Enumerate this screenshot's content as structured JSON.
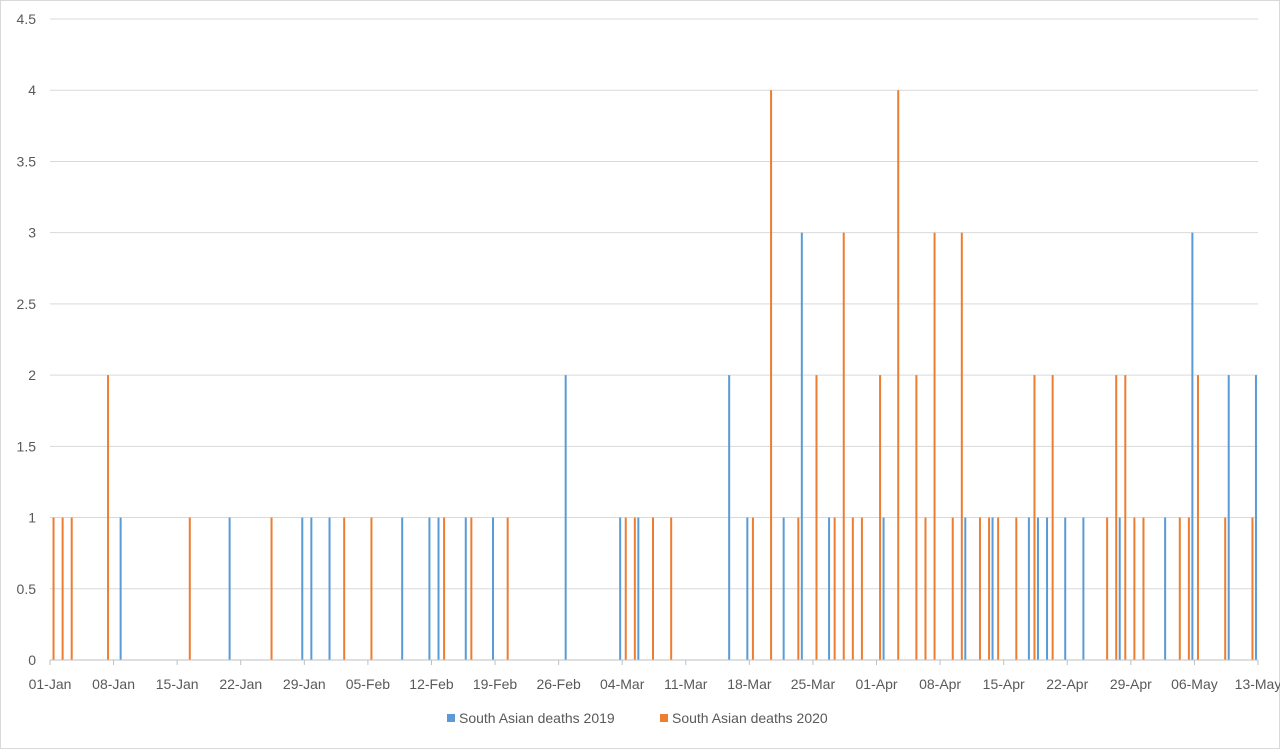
{
  "chart_data": {
    "type": "bar",
    "title": "",
    "xlabel": "",
    "ylabel": "",
    "ylim": [
      0,
      4.5
    ],
    "yticks": [
      "0",
      "0.5",
      "1",
      "1.5",
      "2",
      "2.5",
      "3",
      "3.5",
      "4",
      "4.5"
    ],
    "xlim_days": [
      0,
      133
    ],
    "xtick_labels": [
      "01-Jan",
      "08-Jan",
      "15-Jan",
      "22-Jan",
      "29-Jan",
      "05-Feb",
      "12-Feb",
      "19-Feb",
      "26-Feb",
      "04-Mar",
      "11-Mar",
      "18-Mar",
      "25-Mar",
      "01-Apr",
      "08-Apr",
      "15-Apr",
      "22-Apr",
      "29-Apr",
      "06-May",
      "13-May"
    ],
    "grid": true,
    "legend_position": "bottom",
    "colors": {
      "2019": "#5b9bd5",
      "2020": "#ed7d31",
      "grid": "#d9d9d9",
      "axis": "#bfbfbf"
    },
    "series": [
      {
        "name": "South Asian deaths 2019",
        "points": [
          {
            "date": "08-Jan",
            "value": 1
          },
          {
            "date": "20-Jan",
            "value": 1
          },
          {
            "date": "28-Jan",
            "value": 1
          },
          {
            "date": "29-Jan",
            "value": 1
          },
          {
            "date": "31-Jan",
            "value": 1
          },
          {
            "date": "08-Feb",
            "value": 1
          },
          {
            "date": "11-Feb",
            "value": 1
          },
          {
            "date": "12-Feb",
            "value": 1
          },
          {
            "date": "15-Feb",
            "value": 1
          },
          {
            "date": "18-Feb",
            "value": 1
          },
          {
            "date": "26-Feb",
            "value": 2
          },
          {
            "date": "03-Mar",
            "value": 1
          },
          {
            "date": "05-Mar",
            "value": 1
          },
          {
            "date": "15-Mar",
            "value": 2
          },
          {
            "date": "17-Mar",
            "value": 1
          },
          {
            "date": "21-Mar",
            "value": 1
          },
          {
            "date": "23-Mar",
            "value": 3
          },
          {
            "date": "26-Mar",
            "value": 1
          },
          {
            "date": "01-Apr",
            "value": 1
          },
          {
            "date": "10-Apr",
            "value": 1
          },
          {
            "date": "13-Apr",
            "value": 1
          },
          {
            "date": "17-Apr",
            "value": 1
          },
          {
            "date": "18-Apr",
            "value": 1
          },
          {
            "date": "19-Apr",
            "value": 1
          },
          {
            "date": "21-Apr",
            "value": 1
          },
          {
            "date": "23-Apr",
            "value": 1
          },
          {
            "date": "27-Apr",
            "value": 1
          },
          {
            "date": "02-May",
            "value": 1
          },
          {
            "date": "05-May",
            "value": 3
          },
          {
            "date": "09-May",
            "value": 2
          },
          {
            "date": "12-May",
            "value": 2
          }
        ]
      },
      {
        "name": "South Asian deaths 2020",
        "points": [
          {
            "date": "01-Jan",
            "value": 1
          },
          {
            "date": "02-Jan",
            "value": 1
          },
          {
            "date": "03-Jan",
            "value": 1
          },
          {
            "date": "07-Jan",
            "value": 2
          },
          {
            "date": "16-Jan",
            "value": 1
          },
          {
            "date": "25-Jan",
            "value": 1
          },
          {
            "date": "02-Feb",
            "value": 1
          },
          {
            "date": "05-Feb",
            "value": 1
          },
          {
            "date": "13-Feb",
            "value": 1
          },
          {
            "date": "16-Feb",
            "value": 1
          },
          {
            "date": "20-Feb",
            "value": 1
          },
          {
            "date": "04-Mar",
            "value": 1
          },
          {
            "date": "05-Mar",
            "value": 1
          },
          {
            "date": "07-Mar",
            "value": 1
          },
          {
            "date": "09-Mar",
            "value": 1
          },
          {
            "date": "18-Mar",
            "value": 1
          },
          {
            "date": "20-Mar",
            "value": 4
          },
          {
            "date": "23-Mar",
            "value": 1
          },
          {
            "date": "25-Mar",
            "value": 2
          },
          {
            "date": "27-Mar",
            "value": 1
          },
          {
            "date": "28-Mar",
            "value": 3
          },
          {
            "date": "29-Mar",
            "value": 1
          },
          {
            "date": "30-Mar",
            "value": 1
          },
          {
            "date": "01-Apr",
            "value": 2
          },
          {
            "date": "03-Apr",
            "value": 4
          },
          {
            "date": "05-Apr",
            "value": 2
          },
          {
            "date": "06-Apr",
            "value": 1
          },
          {
            "date": "07-Apr",
            "value": 3
          },
          {
            "date": "09-Apr",
            "value": 1
          },
          {
            "date": "10-Apr",
            "value": 3
          },
          {
            "date": "12-Apr",
            "value": 1
          },
          {
            "date": "13-Apr",
            "value": 1
          },
          {
            "date": "14-Apr",
            "value": 1
          },
          {
            "date": "16-Apr",
            "value": 1
          },
          {
            "date": "18-Apr",
            "value": 2
          },
          {
            "date": "20-Apr",
            "value": 2
          },
          {
            "date": "26-Apr",
            "value": 1
          },
          {
            "date": "27-Apr",
            "value": 2
          },
          {
            "date": "28-Apr",
            "value": 2
          },
          {
            "date": "29-Apr",
            "value": 1
          },
          {
            "date": "30-Apr",
            "value": 1
          },
          {
            "date": "04-May",
            "value": 1
          },
          {
            "date": "05-May",
            "value": 1
          },
          {
            "date": "06-May",
            "value": 2
          },
          {
            "date": "09-May",
            "value": 1
          },
          {
            "date": "12-May",
            "value": 1
          }
        ]
      }
    ]
  }
}
